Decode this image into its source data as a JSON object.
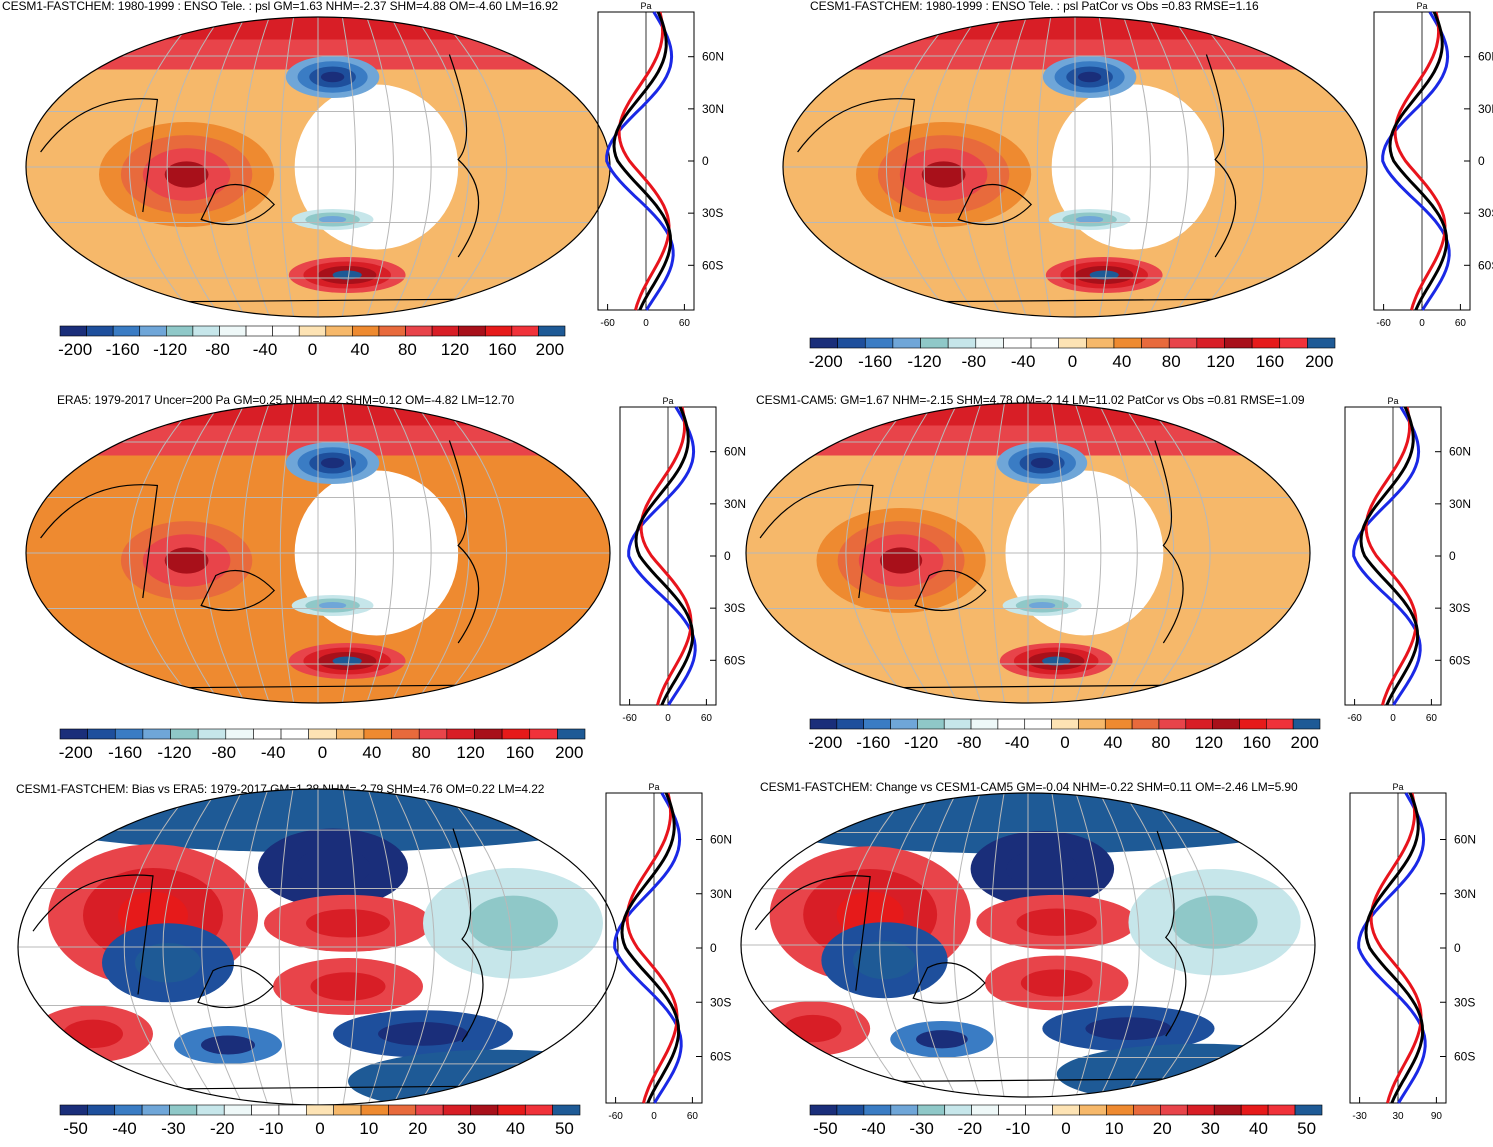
{
  "panels": [
    {
      "id": "p1",
      "title": "CESM1-FASTCHEM: 1980-1999 : ENSO Tele. : psl GM=1.63 NHM=-2.37 SHM=4.88 OM=-4.60 LM=16.92",
      "profile_unit": "Pa",
      "profile_lat_labels": [
        "60N",
        "30N",
        "0",
        "30S",
        "60S"
      ],
      "profile_x_ticks": [
        "-60",
        "0",
        "60"
      ],
      "colorbar_labels": [
        "-200",
        "-160",
        "-120",
        "-80",
        "-40",
        "0",
        "40",
        "80",
        "120",
        "160",
        "200"
      ]
    },
    {
      "id": "p2",
      "title": "CESM1-FASTCHEM: 1980-1999 : ENSO Tele. : psl PatCor vs Obs =0.83 RMSE=1.16",
      "profile_unit": "Pa",
      "profile_lat_labels": [
        "60N",
        "30N",
        "0",
        "30S",
        "60S"
      ],
      "profile_x_ticks": [
        "-60",
        "0",
        "60"
      ],
      "colorbar_labels": [
        "-200",
        "-160",
        "-120",
        "-80",
        "-40",
        "0",
        "40",
        "80",
        "120",
        "160",
        "200"
      ]
    },
    {
      "id": "p3",
      "title": "ERA5: 1979-2017 Uncer=200 Pa GM=0.25 NHM=0.42 SHM=0.12 OM=-4.82 LM=12.70",
      "profile_unit": "Pa",
      "profile_lat_labels": [
        "60N",
        "30N",
        "0",
        "30S",
        "60S"
      ],
      "profile_x_ticks": [
        "-60",
        "0",
        "60"
      ],
      "colorbar_labels": [
        "-200",
        "-160",
        "-120",
        "-80",
        "-40",
        "0",
        "40",
        "80",
        "120",
        "160",
        "200"
      ]
    },
    {
      "id": "p4",
      "title": "CESM1-CAM5: GM=1.67 NHM=-2.15 SHM=4.78 OM=-2.14 LM=11.02 PatCor vs Obs =0.81 RMSE=1.09",
      "profile_unit": "Pa",
      "profile_lat_labels": [
        "60N",
        "30N",
        "0",
        "30S",
        "60S"
      ],
      "profile_x_ticks": [
        "-60",
        "0",
        "60"
      ],
      "colorbar_labels": [
        "-200",
        "-160",
        "-120",
        "-80",
        "-40",
        "0",
        "40",
        "80",
        "120",
        "160",
        "200"
      ]
    },
    {
      "id": "p5",
      "title": "CESM1-FASTCHEM: Bias vs ERA5: 1979-2017 GM=1.38 NHM=-2.79 SHM=4.76 OM=0.22 LM=4.22",
      "profile_unit": "Pa",
      "profile_lat_labels": [
        "60N",
        "30N",
        "0",
        "30S",
        "60S"
      ],
      "profile_x_ticks": [
        "-60",
        "0",
        "60"
      ],
      "colorbar_labels": [
        "-50",
        "-40",
        "-30",
        "-20",
        "-10",
        "0",
        "10",
        "20",
        "30",
        "40",
        "50"
      ]
    },
    {
      "id": "p6",
      "title": "CESM1-FASTCHEM: Change vs CESM1-CAM5 GM=-0.04 NHM=-0.22 SHM=0.11 OM=-2.46 LM=5.90",
      "profile_unit": "Pa",
      "profile_lat_labels": [
        "60N",
        "30N",
        "0",
        "30S",
        "60S"
      ],
      "profile_x_ticks": [
        "-30",
        "30",
        "90"
      ],
      "colorbar_labels": [
        "-50",
        "-40",
        "-30",
        "-20",
        "-10",
        "0",
        "10",
        "20",
        "30",
        "40",
        "50"
      ]
    }
  ],
  "colors": {
    "palette": [
      "#1a2e7a",
      "#1e4f9c",
      "#3a7cc4",
      "#6fa6d8",
      "#8fc8c8",
      "#c6e6ea",
      "#eef8f8",
      "#ffffff",
      "#ffffff",
      "#fde3b4",
      "#f6b86a",
      "#ee8a30",
      "#e86a3c",
      "#e8444a",
      "#d81e26",
      "#a8101a",
      "#e61a1a",
      "#f0323a",
      "#1e5a96"
    ],
    "profile_series": {
      "model": "#e8141c",
      "obs": "#1a28e6",
      "mean": "#000000"
    }
  }
}
